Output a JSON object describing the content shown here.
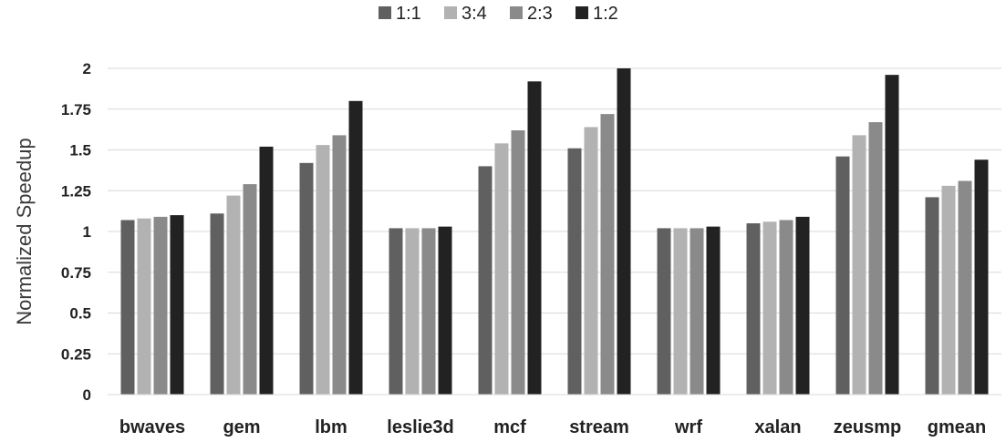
{
  "chart_data": {
    "type": "bar",
    "title": "",
    "xlabel": "",
    "ylabel": "Normalized Speedup",
    "ylim": [
      0,
      2
    ],
    "yticks": [
      "0",
      "0.25",
      "0.5",
      "0.75",
      "1",
      "1.25",
      "1.5",
      "1.75",
      "2"
    ],
    "ytick_values": [
      0,
      0.25,
      0.5,
      0.75,
      1,
      1.25,
      1.5,
      1.75,
      2
    ],
    "grid": true,
    "legend_position": "top-center",
    "categories": [
      "bwaves",
      "gem",
      "lbm",
      "leslie3d",
      "mcf",
      "stream",
      "wrf",
      "xalan",
      "zeusmp",
      "gmean"
    ],
    "series": [
      {
        "name": "1:1",
        "color": "#606060",
        "values": [
          1.07,
          1.11,
          1.42,
          1.02,
          1.4,
          1.51,
          1.02,
          1.05,
          1.46,
          1.21
        ]
      },
      {
        "name": "3:4",
        "color": "#b2b2b2",
        "values": [
          1.08,
          1.22,
          1.53,
          1.02,
          1.54,
          1.64,
          1.02,
          1.06,
          1.59,
          1.28
        ]
      },
      {
        "name": "2:3",
        "color": "#8a8a8a",
        "values": [
          1.09,
          1.29,
          1.59,
          1.02,
          1.62,
          1.72,
          1.02,
          1.07,
          1.67,
          1.31
        ]
      },
      {
        "name": "1:2",
        "color": "#222222",
        "values": [
          1.1,
          1.52,
          1.8,
          1.03,
          1.92,
          2.0,
          1.03,
          1.09,
          1.96,
          1.44
        ]
      }
    ]
  }
}
